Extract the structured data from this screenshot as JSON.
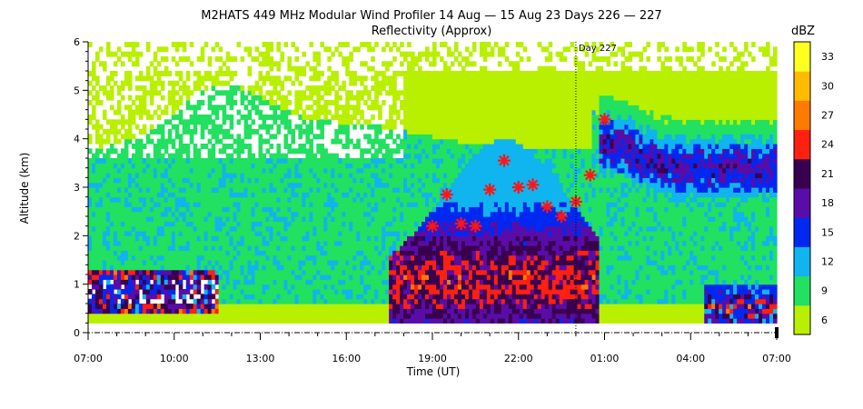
{
  "chart_data": {
    "type": "heatmap",
    "title": "M2HATS 449 MHz Modular Wind Profiler  14 Aug — 15 Aug 23 Days 226 — 227",
    "subtitle": "Reflectivity (Approx)",
    "xlabel": "Time (UT)",
    "ylabel": "Altitude (km)",
    "x_ticks": [
      "07:00",
      "10:00",
      "13:00",
      "16:00",
      "19:00",
      "22:00",
      "01:00",
      "04:00",
      "07:00"
    ],
    "x_range_hours": [
      0,
      24
    ],
    "y_ticks": [
      "0",
      "1",
      "2",
      "3",
      "4",
      "5",
      "6"
    ],
    "ylim": [
      0,
      6
    ],
    "day_marker": {
      "label": "Day 227",
      "x_hours": 17
    },
    "colorbar": {
      "unit": "dBZ",
      "tick_labels": [
        "6",
        "9",
        "12",
        "15",
        "18",
        "21",
        "24",
        "27",
        "30",
        "33"
      ],
      "colors": [
        "#b8f000",
        "#22e060",
        "#10b4ee",
        "#0028f0",
        "#5a0ca8",
        "#3a0050",
        "#ff2010",
        "#ff7a00",
        "#ffbb00",
        "#ffff20"
      ]
    },
    "markers": {
      "color": "#ff1515",
      "points": [
        {
          "x": 12.0,
          "y": 2.2
        },
        {
          "x": 12.5,
          "y": 2.85
        },
        {
          "x": 13.0,
          "y": 2.25
        },
        {
          "x": 13.5,
          "y": 2.2
        },
        {
          "x": 14.0,
          "y": 2.95
        },
        {
          "x": 14.5,
          "y": 3.55
        },
        {
          "x": 15.0,
          "y": 3.0
        },
        {
          "x": 15.5,
          "y": 3.05
        },
        {
          "x": 16.0,
          "y": 2.6
        },
        {
          "x": 16.5,
          "y": 2.4
        },
        {
          "x": 17.0,
          "y": 2.7
        },
        {
          "x": 17.5,
          "y": 3.25
        },
        {
          "x": 18.0,
          "y": 4.4
        }
      ]
    }
  }
}
